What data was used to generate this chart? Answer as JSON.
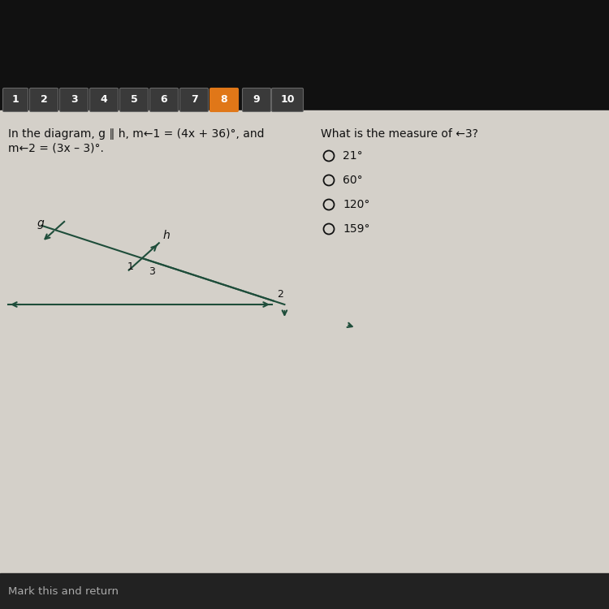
{
  "bg_top": "#111111",
  "bg_main": "#c9c6c0",
  "tab_labels": [
    "1",
    "2",
    "3",
    "4",
    "5",
    "6",
    "7",
    "8",
    "9",
    "10"
  ],
  "active_tab_idx": 7,
  "active_tab_color": "#e07718",
  "inactive_tab_color": "#3a3a3a",
  "tab_border_color": "#666666",
  "tab_text_color": "#ffffff",
  "question_line1": "In the diagram, g ∥ h, m←1 = (4x + 36)°, and",
  "question_line2": "m←2 = (3x – 3)°.",
  "right_question": "What is the measure of ←3?",
  "choices": [
    "21°",
    "60°",
    "120°",
    "159°"
  ],
  "bottom_label": "Mark this and return",
  "diagram_color": "#1e4d3a",
  "text_color": "#111111",
  "content_bg": "#d4d0c9"
}
